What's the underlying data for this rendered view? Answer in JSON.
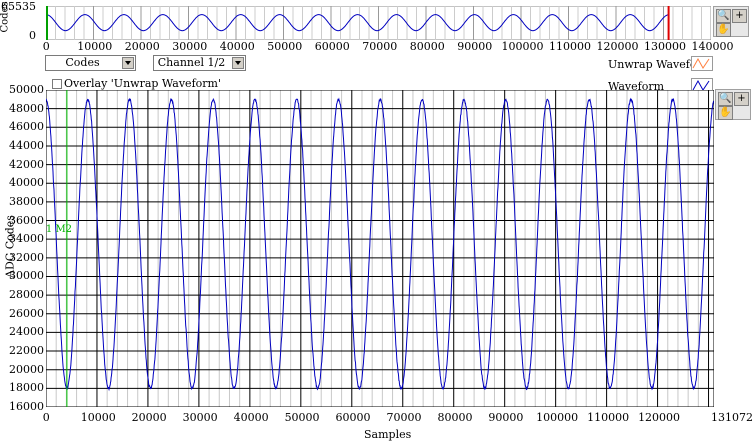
{
  "overview": {
    "ylabel": "Codes",
    "y_ticks": [
      "65535",
      "0"
    ],
    "x_ticks": [
      "0",
      "10000",
      "20000",
      "30000",
      "40000",
      "50000",
      "60000",
      "70000",
      "80000",
      "90000",
      "100000",
      "110000",
      "120000",
      "130000",
      "140000"
    ]
  },
  "controls": {
    "view_select": "Codes",
    "channel_select": "Channel 1/2",
    "overlay_label": "Overlay 'Unwrap Waveform'",
    "overlay_checked": false
  },
  "legend": {
    "unwrap_label": "Unwrap Waveform",
    "waveform_label": "Waveform",
    "unwrap_color": "#ff8040",
    "waveform_color": "#0000c0"
  },
  "cursor": {
    "label": "1  M2",
    "color": "#00c000"
  },
  "tools": {
    "zoom_icon": "zoom-icon",
    "crosshair_icon": "crosshair-icon",
    "pan_icon": "hand-pan-icon"
  },
  "chart_data": [
    {
      "type": "line",
      "name": "overview",
      "ylabel": "Codes",
      "ylim": [
        0,
        65535
      ],
      "xlim": [
        0,
        140000
      ],
      "series": [
        {
          "name": "Waveform",
          "period_samples": 8200,
          "y_center": 33500,
          "y_amplitude": 15500
        }
      ],
      "markers": [
        0,
        131072
      ]
    },
    {
      "type": "line",
      "name": "main",
      "xlabel": "Samples",
      "ylabel": "ADC Codes",
      "xlim": [
        0,
        131072
      ],
      "ylim": [
        16000,
        50000
      ],
      "x_ticks": [
        "0",
        "10000",
        "20000",
        "30000",
        "40000",
        "50000",
        "60000",
        "70000",
        "80000",
        "90000",
        "100000",
        "110000",
        "120000",
        "131072"
      ],
      "y_ticks": [
        "50000",
        "48000",
        "46000",
        "44000",
        "42000",
        "40000",
        "38000",
        "36000",
        "34000",
        "32000",
        "30000",
        "28000",
        "26000",
        "24000",
        "22000",
        "20000",
        "18000",
        "16000"
      ],
      "grid": true,
      "series": [
        {
          "name": "Waveform",
          "color": "#0000c0",
          "period_samples": 8200,
          "y_center": 33500,
          "y_amplitude": 15500,
          "y_max": 49000,
          "y_min": 17700
        }
      ],
      "cursor_x": 4100
    }
  ]
}
